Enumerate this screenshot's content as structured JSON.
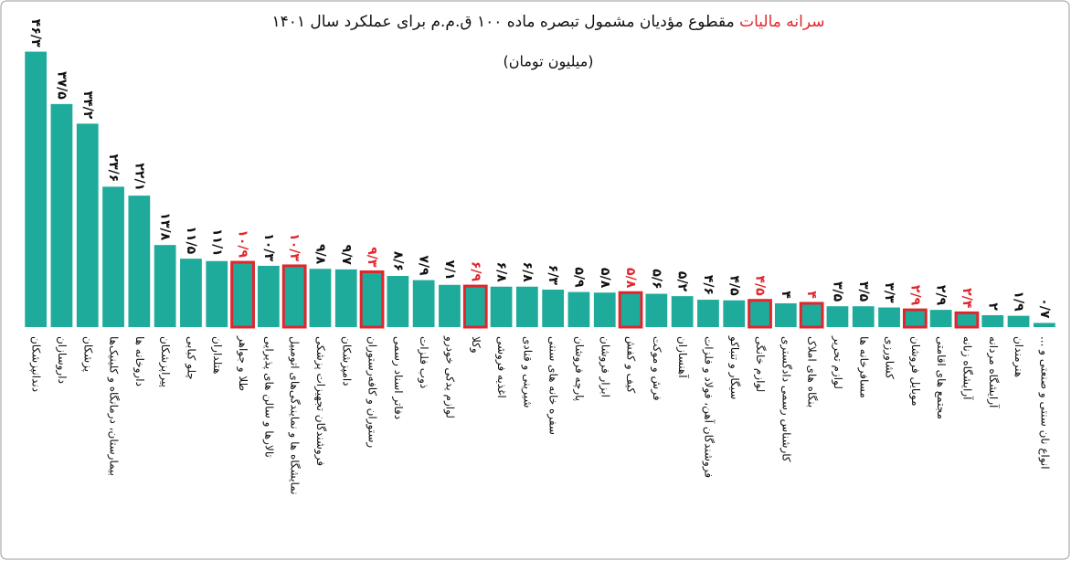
{
  "chart_data": {
    "type": "bar",
    "title_highlight": "سرانه مالیات",
    "title": "مقطوع مؤدیان مشمول تبصره ماده ۱۰۰ ق.م.م برای عملکرد سال ۱۴۰۱",
    "subtitle": "(میلیون تومان)",
    "categories": [
      "دندانپزشکان",
      "داروسازان",
      "پزشکان",
      "بیمارستان، درمانگاه و کلینیک‌ها",
      "داروخانه ها",
      "پیراپزشکان",
      "چلو کبابی",
      "هتلداران",
      "طلا و جواهر",
      "تالارها و سالن های پذیرایی",
      "نمایشگاه ها و نمایندگی‌های اتومبیل",
      "فروشندگان تجهیزات پزشکی",
      "دامپزشکان",
      "رستوران و کافه‌رستوران",
      "دفاتر اسناد رسمی",
      "ذوب فلزات",
      "لوازم یدکی خودرو",
      "وکلا",
      "اغذیه فروشی",
      "شیرینی و قنادی",
      "سفره خانه های سنتی",
      "پارچه فروشان",
      "ابزار فروشان",
      "کیف و کفش",
      "فرش و موکت",
      "آهنسازان",
      "فروشندگان آهن، فولاد و فلزات",
      "سیگار و تنباکو",
      "لوازم خانگی",
      "کارشناس رسمی دادگستری",
      "بنگاه های املاک",
      "لوازم تحریر",
      "مسافرخانه ها",
      "کشاورزی",
      "موبایل فروشان",
      "مجتمع های اقامتی",
      "آرایشگاه زنانه",
      "آرایشگاه مردانه",
      "هنرمندان",
      "انواع نان سنتی و صنعتی و ..."
    ],
    "values": [
      46.3,
      37.5,
      34.2,
      23.6,
      22.1,
      13.8,
      11.5,
      11.1,
      10.9,
      10.3,
      10.3,
      9.8,
      9.7,
      9.3,
      8.6,
      7.9,
      7.1,
      6.9,
      6.8,
      6.8,
      6.3,
      5.9,
      5.8,
      5.8,
      5.6,
      5.2,
      4.6,
      4.5,
      4.5,
      4,
      4,
      3.5,
      3.5,
      3.3,
      2.9,
      2.9,
      2.4,
      2,
      1.9,
      0.7
    ],
    "value_labels": [
      "۴۶/۳",
      "۳۷/۵",
      "۳۴/۲",
      "۲۳/۶",
      "۲۲/۱",
      "۱۳/۸",
      "۱۱/۵",
      "۱۱/۱",
      "۱۰/۹",
      "۱۰/۳",
      "۱۰/۳",
      "۹/۸",
      "۹/۷",
      "۹/۳",
      "۸/۶",
      "۷/۹",
      "۷/۱",
      "۶/۹",
      "۶/۸",
      "۶/۸",
      "۶/۳",
      "۵/۹",
      "۵/۸",
      "۵/۸",
      "۵/۶",
      "۵/۲",
      "۴/۶",
      "۴/۵",
      "۴/۵",
      "۴",
      "۴",
      "۳/۵",
      "۳/۵",
      "۳/۳",
      "۲/۹",
      "۲/۹",
      "۲/۴",
      "۲",
      "۱/۹",
      "۰/۷"
    ],
    "highlighted": [
      false,
      false,
      false,
      false,
      false,
      false,
      false,
      false,
      true,
      false,
      true,
      false,
      false,
      true,
      false,
      false,
      false,
      true,
      false,
      false,
      false,
      false,
      false,
      true,
      false,
      false,
      false,
      false,
      true,
      false,
      true,
      false,
      false,
      false,
      true,
      false,
      true,
      false,
      false,
      false
    ],
    "color": "#1fab9b",
    "highlight_color": "#e0262c",
    "ylim": [
      0,
      47
    ]
  }
}
